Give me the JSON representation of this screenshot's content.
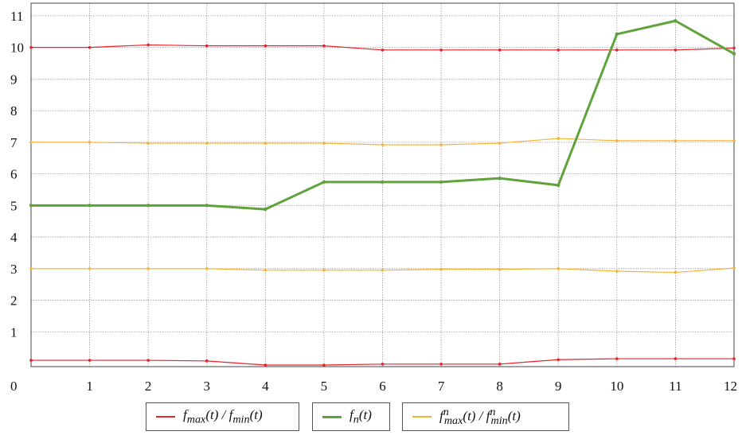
{
  "chart_data": {
    "type": "line",
    "x": [
      0,
      1,
      2,
      3,
      4,
      5,
      6,
      7,
      8,
      9,
      10,
      11,
      12
    ],
    "xlim": [
      0,
      12
    ],
    "ylim": [
      -0.1,
      11.4
    ],
    "xticks": [
      "0",
      "1",
      "2",
      "3",
      "4",
      "5",
      "6",
      "7",
      "8",
      "9",
      "10",
      "11",
      "12"
    ],
    "yticks": [
      "1",
      "2",
      "3",
      "4",
      "5",
      "6",
      "7",
      "8",
      "9",
      "10",
      "11"
    ],
    "grid": true,
    "legend_position": "bottom",
    "series": [
      {
        "name": "f_max(t) / f_min(t)",
        "group": "fmaxmin",
        "color": "#e8222a",
        "width": 1.2,
        "markers": true,
        "values": [
          10.0,
          10.0,
          10.08,
          10.05,
          10.05,
          10.05,
          9.92,
          9.92,
          9.92,
          9.92,
          9.92,
          9.92,
          9.98
        ]
      },
      {
        "name": "",
        "group": "fmaxmin",
        "color": "#e8222a",
        "width": 1.2,
        "markers": true,
        "values": [
          0.1,
          0.1,
          0.1,
          0.08,
          -0.05,
          -0.05,
          -0.02,
          -0.02,
          -0.02,
          0.12,
          0.15,
          0.15,
          0.15
        ]
      },
      {
        "name": "f_max^n(t) / f_min^n(t)",
        "group": "fnmaxmin",
        "color": "#f5b335",
        "width": 1.2,
        "markers": true,
        "values": [
          7.0,
          7.0,
          6.97,
          6.97,
          6.97,
          6.97,
          6.92,
          6.92,
          6.97,
          7.12,
          7.05,
          7.05,
          7.05
        ]
      },
      {
        "name": "",
        "group": "fnmaxmin",
        "color": "#f5b335",
        "width": 1.2,
        "markers": true,
        "values": [
          3.0,
          3.0,
          3.0,
          3.0,
          2.95,
          2.95,
          2.95,
          2.98,
          2.98,
          3.0,
          2.92,
          2.88,
          3.02
        ]
      },
      {
        "name": "f_n(t)",
        "group": "fn",
        "color": "#5fa33a",
        "width": 3,
        "markers": true,
        "values": [
          5.0,
          5.0,
          5.0,
          5.0,
          4.88,
          5.74,
          5.74,
          5.74,
          5.86,
          5.64,
          10.42,
          10.84,
          9.8
        ]
      }
    ],
    "legend": [
      {
        "label": "f_max(t) / f_min(t)",
        "color": "#e8222a"
      },
      {
        "label": "f_n(t)",
        "color": "#5fa33a"
      },
      {
        "label": "f_max^n(t) / f_min^n(t)",
        "color": "#f5b335"
      }
    ]
  }
}
